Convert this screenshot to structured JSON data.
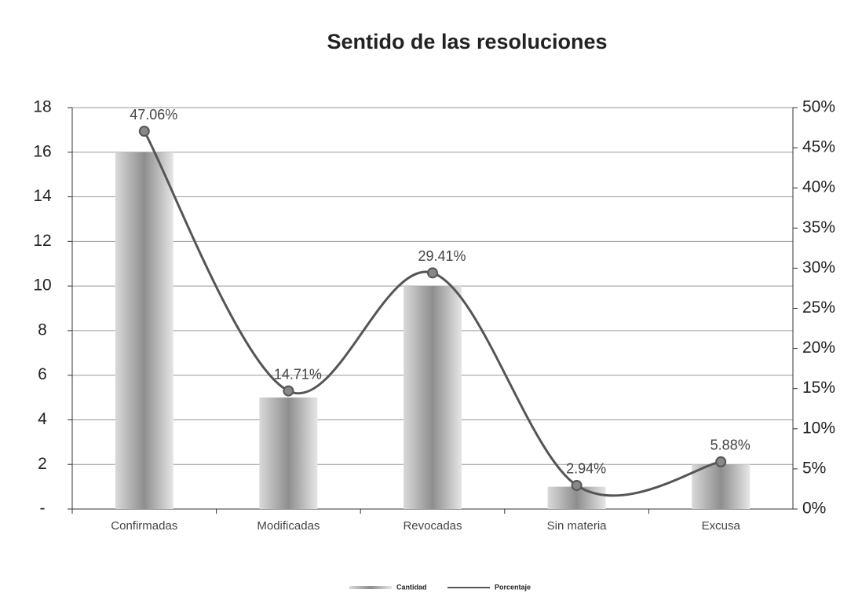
{
  "chart_data": {
    "type": "combo",
    "title": "Sentido de las resoluciones",
    "categories": [
      "Confirmadas",
      "Modificadas",
      "Revocadas",
      "Sin materia",
      "Excusa"
    ],
    "series": [
      {
        "name": "Cantidad",
        "type": "bar",
        "color": "#a8a8a8",
        "values": [
          16,
          5,
          10,
          1,
          2
        ]
      },
      {
        "name": "Porcentaje",
        "type": "line",
        "axis": "y2",
        "color": "#555555",
        "values": [
          47.06,
          14.71,
          29.41,
          2.94,
          5.88
        ],
        "value_labels": [
          "47.06%",
          "14.71%",
          "29.41%",
          "2.94%",
          "5.88%"
        ]
      }
    ],
    "ylim": [
      0,
      18
    ],
    "yticks": [
      {
        "value": 0,
        "label": "-"
      },
      2,
      4,
      6,
      8,
      10,
      12,
      14,
      16,
      18
    ],
    "y2lim": [
      0,
      50
    ],
    "y2ticks": [
      {
        "value": 0,
        "label": "0%"
      },
      {
        "value": 5,
        "label": "5%"
      },
      {
        "value": 10,
        "label": "10%"
      },
      {
        "value": 15,
        "label": "15%"
      },
      {
        "value": 20,
        "label": "20%"
      },
      {
        "value": 25,
        "label": "25%"
      },
      {
        "value": 30,
        "label": "30%"
      },
      {
        "value": 35,
        "label": "35%"
      },
      {
        "value": 40,
        "label": "40%"
      },
      {
        "value": 45,
        "label": "45%"
      },
      {
        "value": 50,
        "label": "50%"
      }
    ],
    "grid": true,
    "legend": "bottom"
  }
}
